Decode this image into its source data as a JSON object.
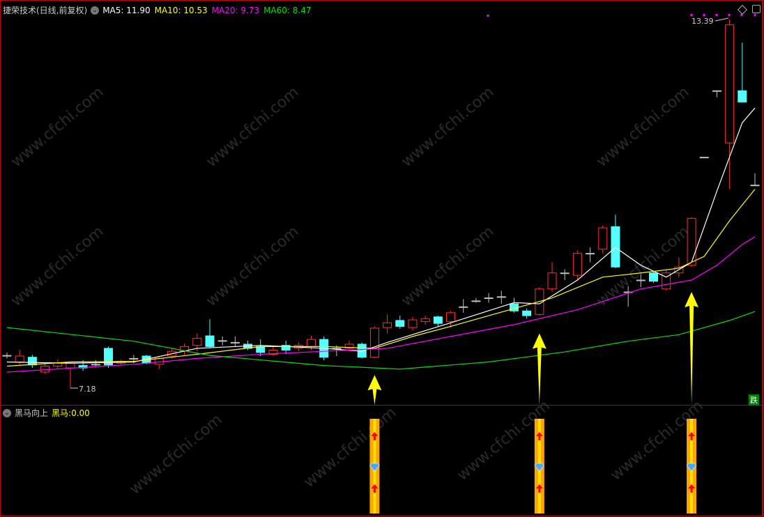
{
  "main": {
    "title": "捷荣技术(日线,前复权)",
    "ma": [
      {
        "label": "MA5:",
        "value": "11.90",
        "color": "#ffffff"
      },
      {
        "label": "MA10:",
        "value": "10.53",
        "color": "#ffff00"
      },
      {
        "label": "MA20:",
        "value": "9.73",
        "color": "#ff00ff"
      },
      {
        "label": "MA60:",
        "value": "8.47",
        "color": "#00e000"
      }
    ],
    "high_label": "13.39",
    "low_label": "7.18",
    "corner_badge": "跌"
  },
  "indicator": {
    "title": "黑马向上",
    "label": "黑马:",
    "value": "0.00",
    "value_color": "#ffff00"
  },
  "watermark": "www.cfchi.com",
  "colors": {
    "up": "#ff3030",
    "down": "#54ffff",
    "flat": "#c0c0c0",
    "border": "#c00000"
  },
  "chart_data": {
    "type": "candlestick",
    "price_range": [
      7.18,
      13.39
    ],
    "candles": [
      [
        7.73,
        7.73,
        7.78,
        7.68
      ],
      [
        7.62,
        7.72,
        7.82,
        7.58
      ],
      [
        7.7,
        7.57,
        7.74,
        7.52
      ],
      [
        7.45,
        7.55,
        7.6,
        7.42
      ],
      [
        7.55,
        7.6,
        7.66,
        7.5
      ],
      [
        7.52,
        7.6,
        7.63,
        7.18
      ],
      [
        7.56,
        7.52,
        7.65,
        7.47
      ],
      [
        7.58,
        7.58,
        7.65,
        7.55
      ],
      [
        7.85,
        7.57,
        7.88,
        7.52
      ],
      [
        7.6,
        7.63,
        7.66,
        7.57
      ],
      [
        7.68,
        7.68,
        7.74,
        7.6
      ],
      [
        7.72,
        7.6,
        7.74,
        7.58
      ],
      [
        7.58,
        7.68,
        7.72,
        7.5
      ],
      [
        7.72,
        7.8,
        7.86,
        7.68
      ],
      [
        7.8,
        7.88,
        7.93,
        7.74
      ],
      [
        7.9,
        8.02,
        8.1,
        7.8
      ],
      [
        8.06,
        7.88,
        8.34,
        7.85
      ],
      [
        7.98,
        7.98,
        8.05,
        7.9
      ],
      [
        7.95,
        7.95,
        8.05,
        7.88
      ],
      [
        7.92,
        7.85,
        7.98,
        7.82
      ],
      [
        7.88,
        7.78,
        8.0,
        7.72
      ],
      [
        7.75,
        7.82,
        7.88,
        7.72
      ],
      [
        7.9,
        7.82,
        7.98,
        7.75
      ],
      [
        7.85,
        7.9,
        7.95,
        7.8
      ],
      [
        7.88,
        8.0,
        8.06,
        7.82
      ],
      [
        8.0,
        7.7,
        8.05,
        7.65
      ],
      [
        7.85,
        7.85,
        7.9,
        7.72
      ],
      [
        7.85,
        7.92,
        7.98,
        7.8
      ],
      [
        7.92,
        7.7,
        7.95,
        7.68
      ],
      [
        7.7,
        8.19,
        8.22,
        7.68
      ],
      [
        8.2,
        8.28,
        8.42,
        8.1
      ],
      [
        8.32,
        8.22,
        8.4,
        8.18
      ],
      [
        8.2,
        8.33,
        8.38,
        8.15
      ],
      [
        8.3,
        8.35,
        8.4,
        8.25
      ],
      [
        8.38,
        8.27,
        8.4,
        8.22
      ],
      [
        8.3,
        8.45,
        8.48,
        8.2
      ],
      [
        8.55,
        8.55,
        8.68,
        8.45
      ],
      [
        8.65,
        8.65,
        8.7,
        8.62
      ],
      [
        8.7,
        8.7,
        8.78,
        8.62
      ],
      [
        8.72,
        8.72,
        8.82,
        8.6
      ],
      [
        8.6,
        8.48,
        8.7,
        8.45
      ],
      [
        8.48,
        8.4,
        8.52,
        8.35
      ],
      [
        8.42,
        8.85,
        8.88,
        8.4
      ],
      [
        8.85,
        9.12,
        9.3,
        8.8
      ],
      [
        9.12,
        9.12,
        9.18,
        9.0
      ],
      [
        9.08,
        9.45,
        9.5,
        9.0
      ],
      [
        9.45,
        9.45,
        9.55,
        9.3
      ],
      [
        9.52,
        9.88,
        9.92,
        9.45
      ],
      [
        9.9,
        9.22,
        10.1,
        9.2
      ],
      [
        8.8,
        8.8,
        8.9,
        8.55
      ],
      [
        9.0,
        9.0,
        9.1,
        8.88
      ],
      [
        9.12,
        8.98,
        9.15,
        8.95
      ],
      [
        8.85,
        9.12,
        9.18,
        8.82
      ],
      [
        9.12,
        9.22,
        9.38,
        9.05
      ],
      [
        9.25,
        10.04,
        10.06,
        9.22
      ],
      [
        11.07,
        11.07,
        11.07,
        11.07
      ],
      [
        12.19,
        12.19,
        12.19,
        12.08
      ],
      [
        11.31,
        13.3,
        13.39,
        10.54
      ],
      [
        12.19,
        12.0,
        13.0,
        12.0
      ],
      [
        10.6,
        10.6,
        10.8,
        10.6
      ]
    ],
    "ma_lines": [
      {
        "name": "MA5",
        "color": "#ffffff",
        "points": [
          [
            0,
            7.62
          ],
          [
            5,
            7.6
          ],
          [
            10,
            7.62
          ],
          [
            15,
            7.85
          ],
          [
            20,
            7.9
          ],
          [
            25,
            7.85
          ],
          [
            28,
            7.8
          ],
          [
            30,
            7.95
          ],
          [
            35,
            8.28
          ],
          [
            40,
            8.62
          ],
          [
            42,
            8.6
          ],
          [
            45,
            9.0
          ],
          [
            48,
            9.55
          ],
          [
            50,
            9.25
          ],
          [
            52,
            9.05
          ],
          [
            54,
            9.3
          ],
          [
            56,
            10.5
          ],
          [
            58,
            11.65
          ],
          [
            59,
            11.9
          ]
        ]
      },
      {
        "name": "MA10",
        "color": "#ffff00",
        "points": [
          [
            0,
            7.55
          ],
          [
            5,
            7.62
          ],
          [
            10,
            7.63
          ],
          [
            15,
            7.75
          ],
          [
            20,
            7.88
          ],
          [
            25,
            7.88
          ],
          [
            29,
            7.85
          ],
          [
            32,
            8.05
          ],
          [
            35,
            8.22
          ],
          [
            40,
            8.52
          ],
          [
            43,
            8.7
          ],
          [
            47,
            9.05
          ],
          [
            50,
            9.12
          ],
          [
            53,
            9.2
          ],
          [
            55,
            9.4
          ],
          [
            57,
            10.0
          ],
          [
            59,
            10.53
          ]
        ]
      },
      {
        "name": "MA20",
        "color": "#ff00ff",
        "points": [
          [
            0,
            7.45
          ],
          [
            10,
            7.58
          ],
          [
            15,
            7.68
          ],
          [
            20,
            7.75
          ],
          [
            25,
            7.8
          ],
          [
            30,
            7.85
          ],
          [
            35,
            8.05
          ],
          [
            40,
            8.25
          ],
          [
            45,
            8.5
          ],
          [
            50,
            8.85
          ],
          [
            54,
            9.0
          ],
          [
            56,
            9.25
          ],
          [
            58,
            9.6
          ],
          [
            59,
            9.73
          ]
        ]
      },
      {
        "name": "MA60",
        "color": "#00e000",
        "points": [
          [
            0,
            8.2
          ],
          [
            10,
            7.97
          ],
          [
            16,
            7.73
          ],
          [
            25,
            7.56
          ],
          [
            31,
            7.5
          ],
          [
            38,
            7.62
          ],
          [
            44,
            7.79
          ],
          [
            49,
            7.97
          ],
          [
            53,
            8.08
          ],
          [
            57,
            8.32
          ],
          [
            59,
            8.47
          ]
        ]
      }
    ],
    "signals": [
      29,
      42,
      54
    ],
    "signal_arrow_tips": [
      7.4,
      8.1,
      8.8
    ]
  }
}
